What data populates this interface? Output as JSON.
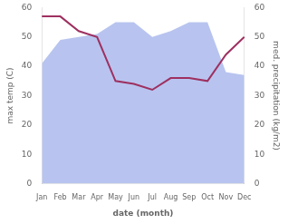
{
  "chart_data": {
    "type": "line",
    "xlabel": "date (month)",
    "ylabel": "max temp (C)",
    "y2label": "med. precipitation (kg/m2)",
    "categories": [
      "Jan",
      "Feb",
      "Mar",
      "Apr",
      "May",
      "Jun",
      "Jul",
      "Aug",
      "Sep",
      "Oct",
      "Nov",
      "Dec"
    ],
    "series": [
      {
        "type": "area",
        "color": "#b8c4ef",
        "values": [
          41,
          49,
          50,
          51,
          55,
          55,
          50,
          52,
          55,
          55,
          38,
          37
        ]
      },
      {
        "type": "line",
        "color": "#9e3060",
        "axis": "y2",
        "values": [
          57,
          57,
          52,
          50,
          35,
          34,
          32,
          36,
          36,
          35,
          44,
          50
        ]
      }
    ],
    "ylim": [
      0,
      60
    ],
    "yticks": [
      0,
      10,
      20,
      30,
      40,
      50,
      60
    ],
    "y2lim": [
      0,
      60
    ],
    "y2ticks": [
      0,
      10,
      20,
      30,
      40,
      50,
      60
    ],
    "grid": false
  }
}
